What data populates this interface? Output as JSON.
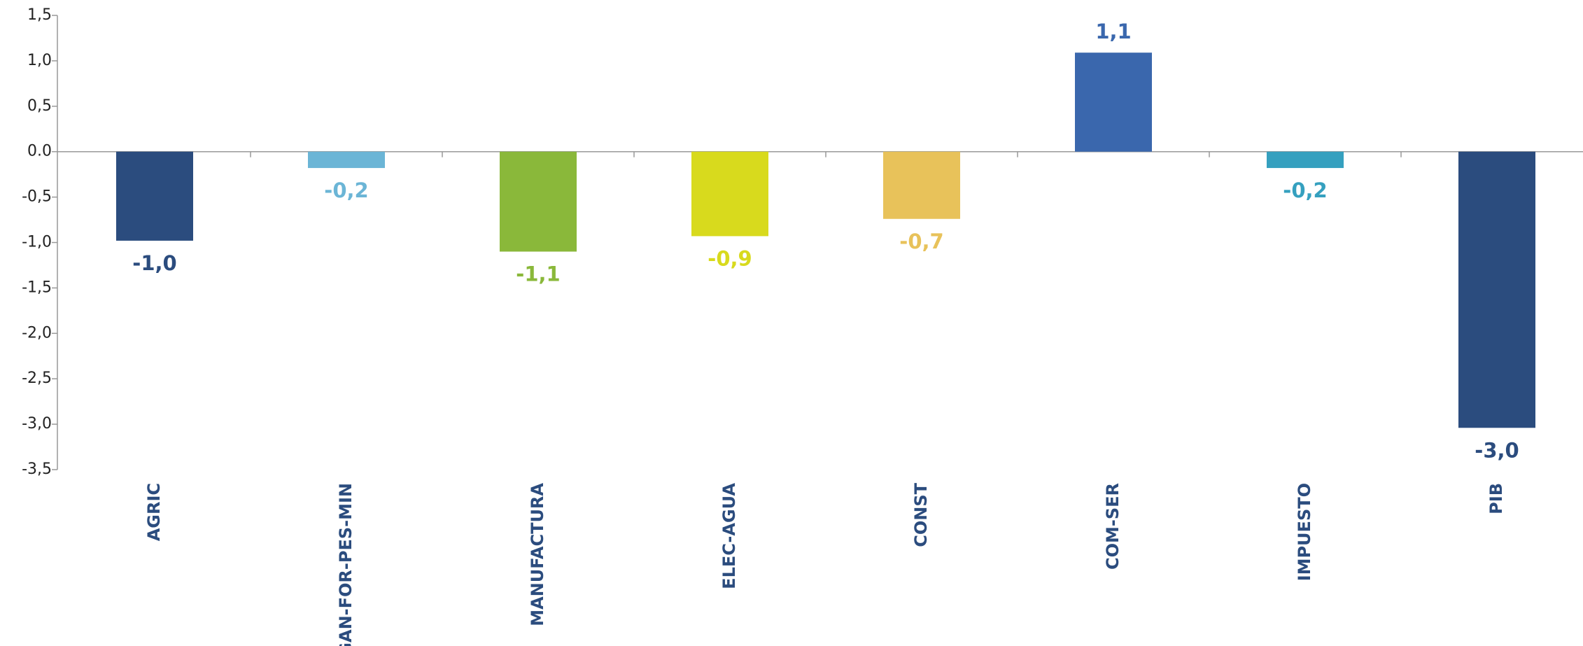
{
  "chart_data": {
    "type": "bar",
    "categories": [
      "AGRIC",
      "GAN-FOR-PES-MIN",
      "MANUFACTURA",
      "ELEC-AGUA",
      "CONST",
      "COM-SER",
      "IMPUESTO",
      "PIB"
    ],
    "values": [
      -0.98,
      -0.18,
      -1.1,
      -0.93,
      -0.74,
      1.09,
      -0.18,
      -3.04
    ],
    "value_labels": [
      "-1,0",
      "-0,2",
      "-1,1",
      "-0,9",
      "-0,7",
      "1,1",
      "-0,2",
      "-3,0"
    ],
    "colors": [
      "#2b4c7e",
      "#6bb5d6",
      "#8ab83a",
      "#d8da1d",
      "#e8c25a",
      "#3a67ad",
      "#35a0bf",
      "#2b4c7e"
    ],
    "ylim": [
      -3.5,
      1.5
    ],
    "yticks": [
      {
        "value": 1.5,
        "label": "1,5"
      },
      {
        "value": 1.0,
        "label": "1,0"
      },
      {
        "value": 0.5,
        "label": "0,5"
      },
      {
        "value": 0,
        "label": "0.0"
      },
      {
        "value": -0.5,
        "label": "-0,5"
      },
      {
        "value": -1.0,
        "label": "-1,0"
      },
      {
        "value": -1.5,
        "label": "-1,5"
      },
      {
        "value": -2.0,
        "label": "-2,0"
      },
      {
        "value": -2.5,
        "label": "-2,5"
      },
      {
        "value": -3.0,
        "label": "-3,0"
      },
      {
        "value": -3.5,
        "label": "-3,5"
      }
    ]
  }
}
